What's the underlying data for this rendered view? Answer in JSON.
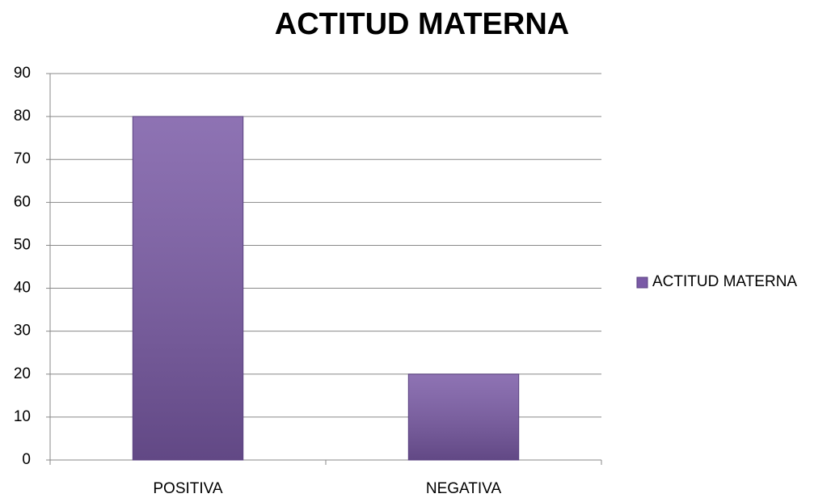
{
  "chart_data": {
    "type": "bar",
    "title": "ACTITUD MATERNA",
    "categories": [
      "POSITIVA",
      "NEGATIVA"
    ],
    "series": [
      {
        "name": "ACTITUD MATERNA",
        "color": "#7a5aa6",
        "values": [
          80,
          20
        ]
      }
    ],
    "ylim": [
      0,
      90
    ],
    "yticks": [
      0,
      10,
      20,
      30,
      40,
      50,
      60,
      70,
      80,
      90
    ],
    "grid": true,
    "legend": "right"
  }
}
